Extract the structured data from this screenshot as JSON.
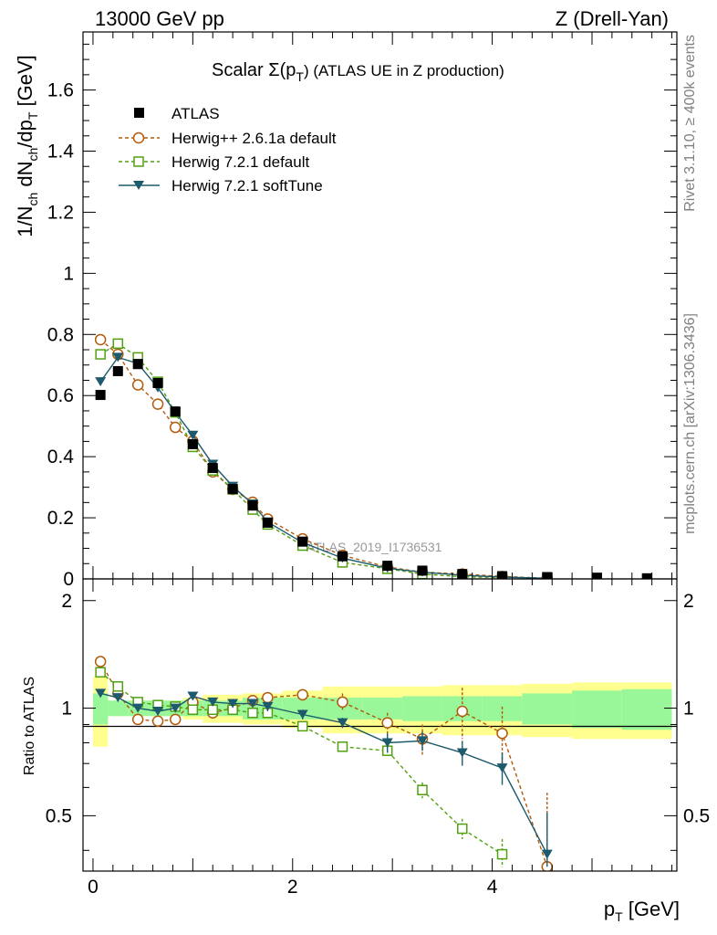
{
  "header": {
    "left": "13000 GeV pp",
    "right": "Z (Drell-Yan)"
  },
  "side": {
    "top": "Rivet 3.1.10, ≥ 400k events",
    "bottom": "mcplots.cern.ch [arXiv:1306.3436]"
  },
  "chart_data": {
    "type": "line",
    "title": "Scalar Σ(pT) (ATLAS UE in Z production)",
    "title_text": {
      "prefix": "Scalar Σ(p",
      "sub": "T",
      "suffix": ") (ATLAS UE in Z production)"
    },
    "watermark": "ATLAS_2019_I1736531",
    "xlabel": "p_T [GeV]",
    "xlabel_text": {
      "main": "p",
      "sub": "T",
      "unit": " [GeV]"
    },
    "ylabel": "1/N_ch dN_ch/dp_T [GeV]",
    "ylabel_text": {
      "a": "1/N",
      "a_sub": "ch",
      "b": " dN",
      "b_sub": "ch",
      "c": "/dp",
      "c_sub": "T",
      "d": " [GeV]"
    },
    "xlim": [
      -0.1,
      5.85
    ],
    "ylim": [
      0,
      1.79
    ],
    "xticks": [
      0,
      2,
      4
    ],
    "yticks": [
      0,
      0.2,
      0.4,
      0.6,
      0.8,
      1,
      1.2,
      1.4,
      1.6
    ],
    "ratio": {
      "ylabel": "Ratio to ATLAS",
      "ylim": [
        0.35,
        2.3
      ],
      "yticks": [
        0.5,
        1,
        2
      ]
    },
    "x": [
      0.075,
      0.25,
      0.45,
      0.65,
      0.825,
      1.0,
      1.2,
      1.4,
      1.6,
      1.75,
      2.1,
      2.5,
      2.95,
      3.3,
      3.7,
      4.1,
      4.55,
      5.05,
      5.55
    ],
    "x_edges": [
      0,
      0.15,
      0.35,
      0.55,
      0.75,
      0.9,
      1.1,
      1.3,
      1.5,
      1.7,
      1.9,
      2.3,
      2.7,
      3.1,
      3.5,
      3.9,
      4.3,
      4.8,
      5.3,
      5.8
    ],
    "data_band_inner": [
      0.1,
      0.05,
      0.05,
      0.05,
      0.05,
      0.05,
      0.05,
      0.05,
      0.07,
      0.07,
      0.07,
      0.07,
      0.07,
      0.08,
      0.08,
      0.08,
      0.1,
      0.12,
      0.13
    ],
    "data_band_outer": [
      0.22,
      0.05,
      0.05,
      0.05,
      0.05,
      0.07,
      0.09,
      0.09,
      0.1,
      0.1,
      0.12,
      0.15,
      0.15,
      0.15,
      0.16,
      0.16,
      0.17,
      0.18,
      0.18
    ],
    "legend": [
      {
        "name": "ATLAS"
      },
      {
        "name": "Herwig++ 2.6.1a default"
      },
      {
        "name": "Herwig 7.2.1 default"
      },
      {
        "name": "Herwig 7.2.1 softTune"
      }
    ],
    "series": [
      {
        "name": "ATLAS",
        "color": "#000000",
        "marker": "square",
        "values": [
          0.602,
          0.68,
          0.703,
          0.641,
          0.548,
          0.441,
          0.363,
          0.294,
          0.24,
          0.184,
          0.122,
          0.074,
          0.043,
          0.027,
          0.016,
          0.009,
          0.006,
          0.004,
          0.002
        ],
        "ratio": [
          1,
          1,
          1,
          1,
          1,
          1,
          1,
          1,
          1,
          1,
          1,
          1,
          1,
          1,
          1,
          1,
          1,
          1,
          1
        ]
      },
      {
        "name": "Herwig++ 2.6.1a default",
        "color": "#b15a0c",
        "marker": "circle",
        "dashed": true,
        "values": [
          0.783,
          0.735,
          0.635,
          0.572,
          0.496,
          0.451,
          0.35,
          0.293,
          0.251,
          0.196,
          0.131,
          0.077,
          0.039,
          0.022,
          0.016,
          0.008,
          0.002,
          null,
          null
        ],
        "ratio": [
          1.35,
          1.1,
          0.93,
          0.92,
          0.93,
          1.04,
          0.97,
          1.0,
          1.05,
          1.07,
          1.09,
          1.04,
          0.91,
          0.82,
          0.98,
          0.85,
          0.36,
          null,
          null
        ],
        "ratio_err": [
          0.03,
          0.02,
          0.02,
          0.03,
          0.03,
          0.03,
          0.03,
          0.03,
          0.03,
          0.04,
          0.04,
          0.06,
          0.06,
          0.08,
          0.16,
          0.16,
          0.22,
          null,
          null
        ]
      },
      {
        "name": "Herwig 7.2.1 default",
        "color": "#52a010",
        "marker": "open-square",
        "dashed": true,
        "values": [
          0.735,
          0.77,
          0.725,
          0.645,
          0.545,
          0.432,
          0.355,
          0.293,
          0.227,
          0.178,
          0.109,
          0.054,
          0.033,
          0.016,
          0.007,
          0.004,
          null,
          null,
          null
        ],
        "ratio": [
          1.26,
          1.15,
          1.04,
          1.02,
          1.01,
          0.99,
          0.99,
          0.99,
          0.97,
          0.97,
          0.89,
          0.78,
          0.76,
          0.59,
          0.46,
          0.39,
          null,
          null,
          null
        ],
        "ratio_err": [
          0.03,
          0.02,
          0.02,
          0.02,
          0.02,
          0.02,
          0.02,
          0.02,
          0.02,
          0.03,
          0.02,
          0.02,
          0.02,
          0.03,
          0.03,
          0.04,
          null,
          null,
          null
        ]
      },
      {
        "name": "Herwig 7.2.1 softTune",
        "color": "#1d5a6b",
        "marker": "triangle-down",
        "dashed": false,
        "values": [
          0.645,
          0.725,
          0.705,
          0.625,
          0.545,
          0.47,
          0.375,
          0.303,
          0.245,
          0.186,
          0.119,
          0.068,
          0.035,
          0.022,
          0.012,
          0.006,
          0.002,
          null,
          null
        ],
        "ratio": [
          1.1,
          1.07,
          1.0,
          0.98,
          1.0,
          1.08,
          1.04,
          1.03,
          1.03,
          1.01,
          0.96,
          0.91,
          0.8,
          0.81,
          0.75,
          0.68,
          0.39,
          null,
          null
        ],
        "ratio_err": [
          0.02,
          0.02,
          0.02,
          0.02,
          0.02,
          0.02,
          0.02,
          0.02,
          0.02,
          0.03,
          0.03,
          0.03,
          0.05,
          0.05,
          0.06,
          0.07,
          0.12,
          null,
          null
        ]
      }
    ]
  }
}
